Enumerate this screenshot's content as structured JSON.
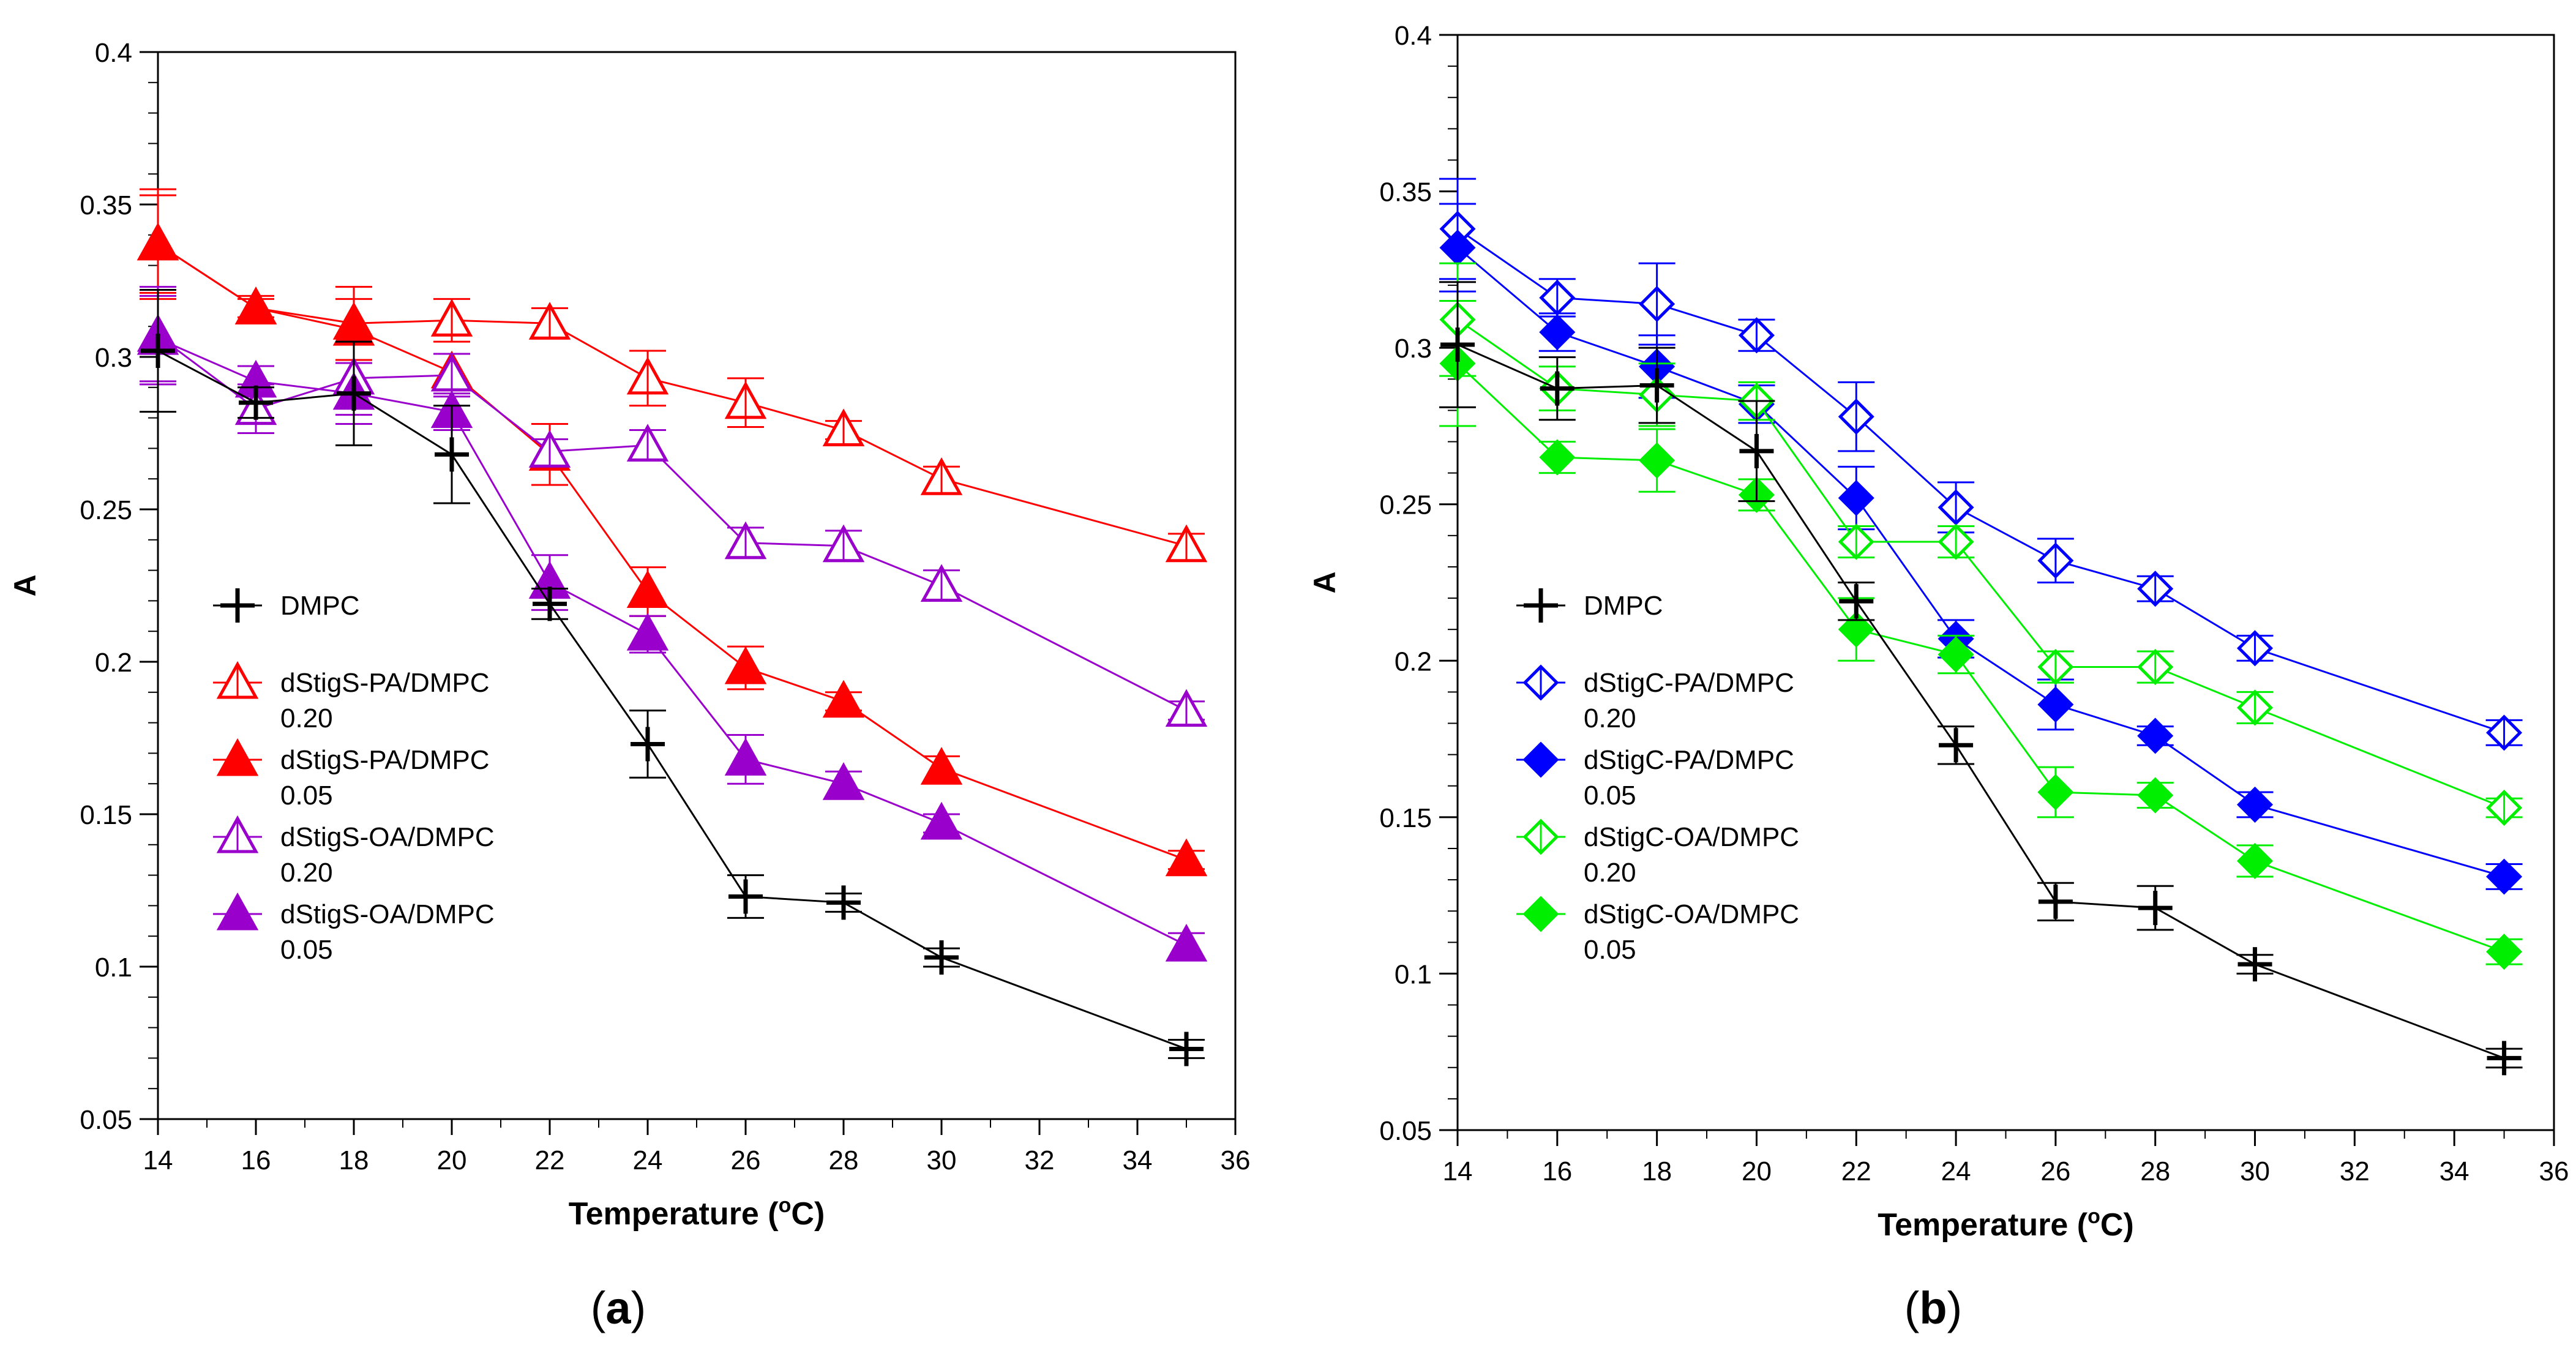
{
  "chart_data": [
    {
      "type": "line",
      "panel_label": "a",
      "xlabel": "Temperature",
      "xlabel_super": "o",
      "xlabel_unit": "C",
      "ylabel": "A",
      "xlim": [
        14,
        36
      ],
      "ylim": [
        0.05,
        0.4
      ],
      "xticks": [
        14,
        16,
        18,
        20,
        22,
        24,
        26,
        28,
        30,
        32,
        34,
        36
      ],
      "yticks": [
        0.05,
        0.1,
        0.15,
        0.2,
        0.25,
        0.3,
        0.35,
        0.4
      ],
      "ytick_labels": [
        "0.05",
        "0.1",
        "0.15",
        "0.2",
        "0.25",
        "0.3",
        "0.35",
        "0.4"
      ],
      "legend_position": "center-left",
      "x": [
        14,
        16,
        18,
        20,
        22,
        24,
        26,
        28,
        30,
        35
      ],
      "series": [
        {
          "name": "DMPC",
          "name_line2": "",
          "color": "#000000",
          "marker": "plus",
          "filled": true,
          "values": [
            0.302,
            0.285,
            0.288,
            0.268,
            0.219,
            0.173,
            0.123,
            0.121,
            0.103,
            0.073
          ],
          "errors": [
            0.02,
            0.005,
            0.017,
            0.016,
            0.005,
            0.011,
            0.007,
            0.003,
            0.003,
            0.003
          ]
        },
        {
          "name": "dStigS-PA/DMPC",
          "name_line2": "0.20",
          "color": "#ff0000",
          "marker": "triangle",
          "filled": false,
          "values": [
            0.337,
            0.316,
            0.311,
            0.312,
            0.311,
            0.293,
            0.285,
            0.276,
            0.26,
            0.238
          ],
          "errors": [
            0.018,
            0.004,
            0.012,
            0.007,
            0.005,
            0.009,
            0.008,
            0.003,
            0.004,
            0.004
          ]
        },
        {
          "name": "dStigS-PA/DMPC",
          "name_line2": "0.05",
          "color": "#ff0000",
          "marker": "triangle",
          "filled": true,
          "values": [
            0.337,
            0.316,
            0.309,
            0.295,
            0.268,
            0.223,
            0.198,
            0.187,
            0.165,
            0.135
          ],
          "errors": [
            0.016,
            0.003,
            0.01,
            0.006,
            0.01,
            0.008,
            0.007,
            0.003,
            0.004,
            0.003
          ]
        },
        {
          "name": "dStigS-OA/DMPC",
          "name_line2": "0.20",
          "color": "#9900cc",
          "marker": "triangle",
          "filled": false,
          "values": [
            0.307,
            0.283,
            0.293,
            0.294,
            0.269,
            0.271,
            0.239,
            0.238,
            0.225,
            0.184
          ],
          "errors": [
            0.016,
            0.008,
            0.012,
            0.007,
            0.004,
            0.005,
            0.005,
            0.005,
            0.005,
            0.003
          ]
        },
        {
          "name": "dStigS-OA/DMPC",
          "name_line2": "0.05",
          "color": "#9900cc",
          "marker": "triangle",
          "filled": true,
          "values": [
            0.306,
            0.292,
            0.288,
            0.282,
            0.226,
            0.209,
            0.168,
            0.16,
            0.147,
            0.107
          ],
          "errors": [
            0.014,
            0.005,
            0.01,
            0.006,
            0.009,
            0.006,
            0.008,
            0.004,
            0.003,
            0.004
          ]
        }
      ]
    },
    {
      "type": "line",
      "panel_label": "b",
      "xlabel": "Temperature",
      "xlabel_super": "o",
      "xlabel_unit": "C",
      "ylabel": "A",
      "xlim": [
        14,
        36
      ],
      "ylim": [
        0.05,
        0.4
      ],
      "xticks": [
        14,
        16,
        18,
        20,
        22,
        24,
        26,
        28,
        30,
        32,
        34,
        36
      ],
      "yticks": [
        0.05,
        0.1,
        0.15,
        0.2,
        0.25,
        0.3,
        0.35,
        0.4
      ],
      "ytick_labels": [
        "0.05",
        "0.1",
        "0.15",
        "0.2",
        "0.25",
        "0.3",
        "0.35",
        "0.4"
      ],
      "legend_position": "center-left",
      "x": [
        14,
        16,
        18,
        20,
        22,
        24,
        26,
        28,
        30,
        35
      ],
      "series": [
        {
          "name": "DMPC",
          "name_line2": "",
          "color": "#000000",
          "marker": "plus",
          "filled": true,
          "values": [
            0.301,
            0.287,
            0.288,
            0.267,
            0.219,
            0.173,
            0.123,
            0.121,
            0.103,
            0.073
          ],
          "errors": [
            0.02,
            0.01,
            0.012,
            0.016,
            0.006,
            0.006,
            0.006,
            0.007,
            0.003,
            0.003
          ]
        },
        {
          "name": "dStigC-PA/DMPC",
          "name_line2": " 0.20",
          "color": "#0000ff",
          "marker": "diamond",
          "filled": false,
          "values": [
            0.338,
            0.316,
            0.314,
            0.304,
            0.278,
            0.249,
            0.232,
            0.223,
            0.204,
            0.177
          ],
          "errors": [
            0.016,
            0.006,
            0.013,
            0.005,
            0.011,
            0.008,
            0.007,
            0.004,
            0.004,
            0.004
          ]
        },
        {
          "name": "dStigC-PA/DMPC",
          "name_line2": "0.05",
          "color": "#0000ff",
          "marker": "diamond",
          "filled": true,
          "values": [
            0.332,
            0.305,
            0.294,
            0.282,
            0.252,
            0.207,
            0.186,
            0.176,
            0.154,
            0.131
          ],
          "errors": [
            0.014,
            0.006,
            0.01,
            0.006,
            0.01,
            0.006,
            0.008,
            0.003,
            0.004,
            0.004
          ]
        },
        {
          "name": "dStigC-OA/DMPC",
          "name_line2": "0.20",
          "color": "#00ee00",
          "marker": "diamond",
          "filled": false,
          "values": [
            0.309,
            0.287,
            0.285,
            0.283,
            0.238,
            0.238,
            0.198,
            0.198,
            0.185,
            0.153
          ],
          "errors": [
            0.018,
            0.007,
            0.01,
            0.006,
            0.005,
            0.005,
            0.005,
            0.005,
            0.005,
            0.003
          ]
        },
        {
          "name": "dStigC-OA/DMPC",
          "name_line2": "0.05",
          "color": "#00ee00",
          "marker": "diamond",
          "filled": true,
          "values": [
            0.295,
            0.265,
            0.264,
            0.253,
            0.21,
            0.202,
            0.158,
            0.157,
            0.136,
            0.107
          ],
          "errors": [
            0.02,
            0.005,
            0.01,
            0.005,
            0.01,
            0.006,
            0.008,
            0.004,
            0.005,
            0.004
          ]
        }
      ]
    }
  ]
}
